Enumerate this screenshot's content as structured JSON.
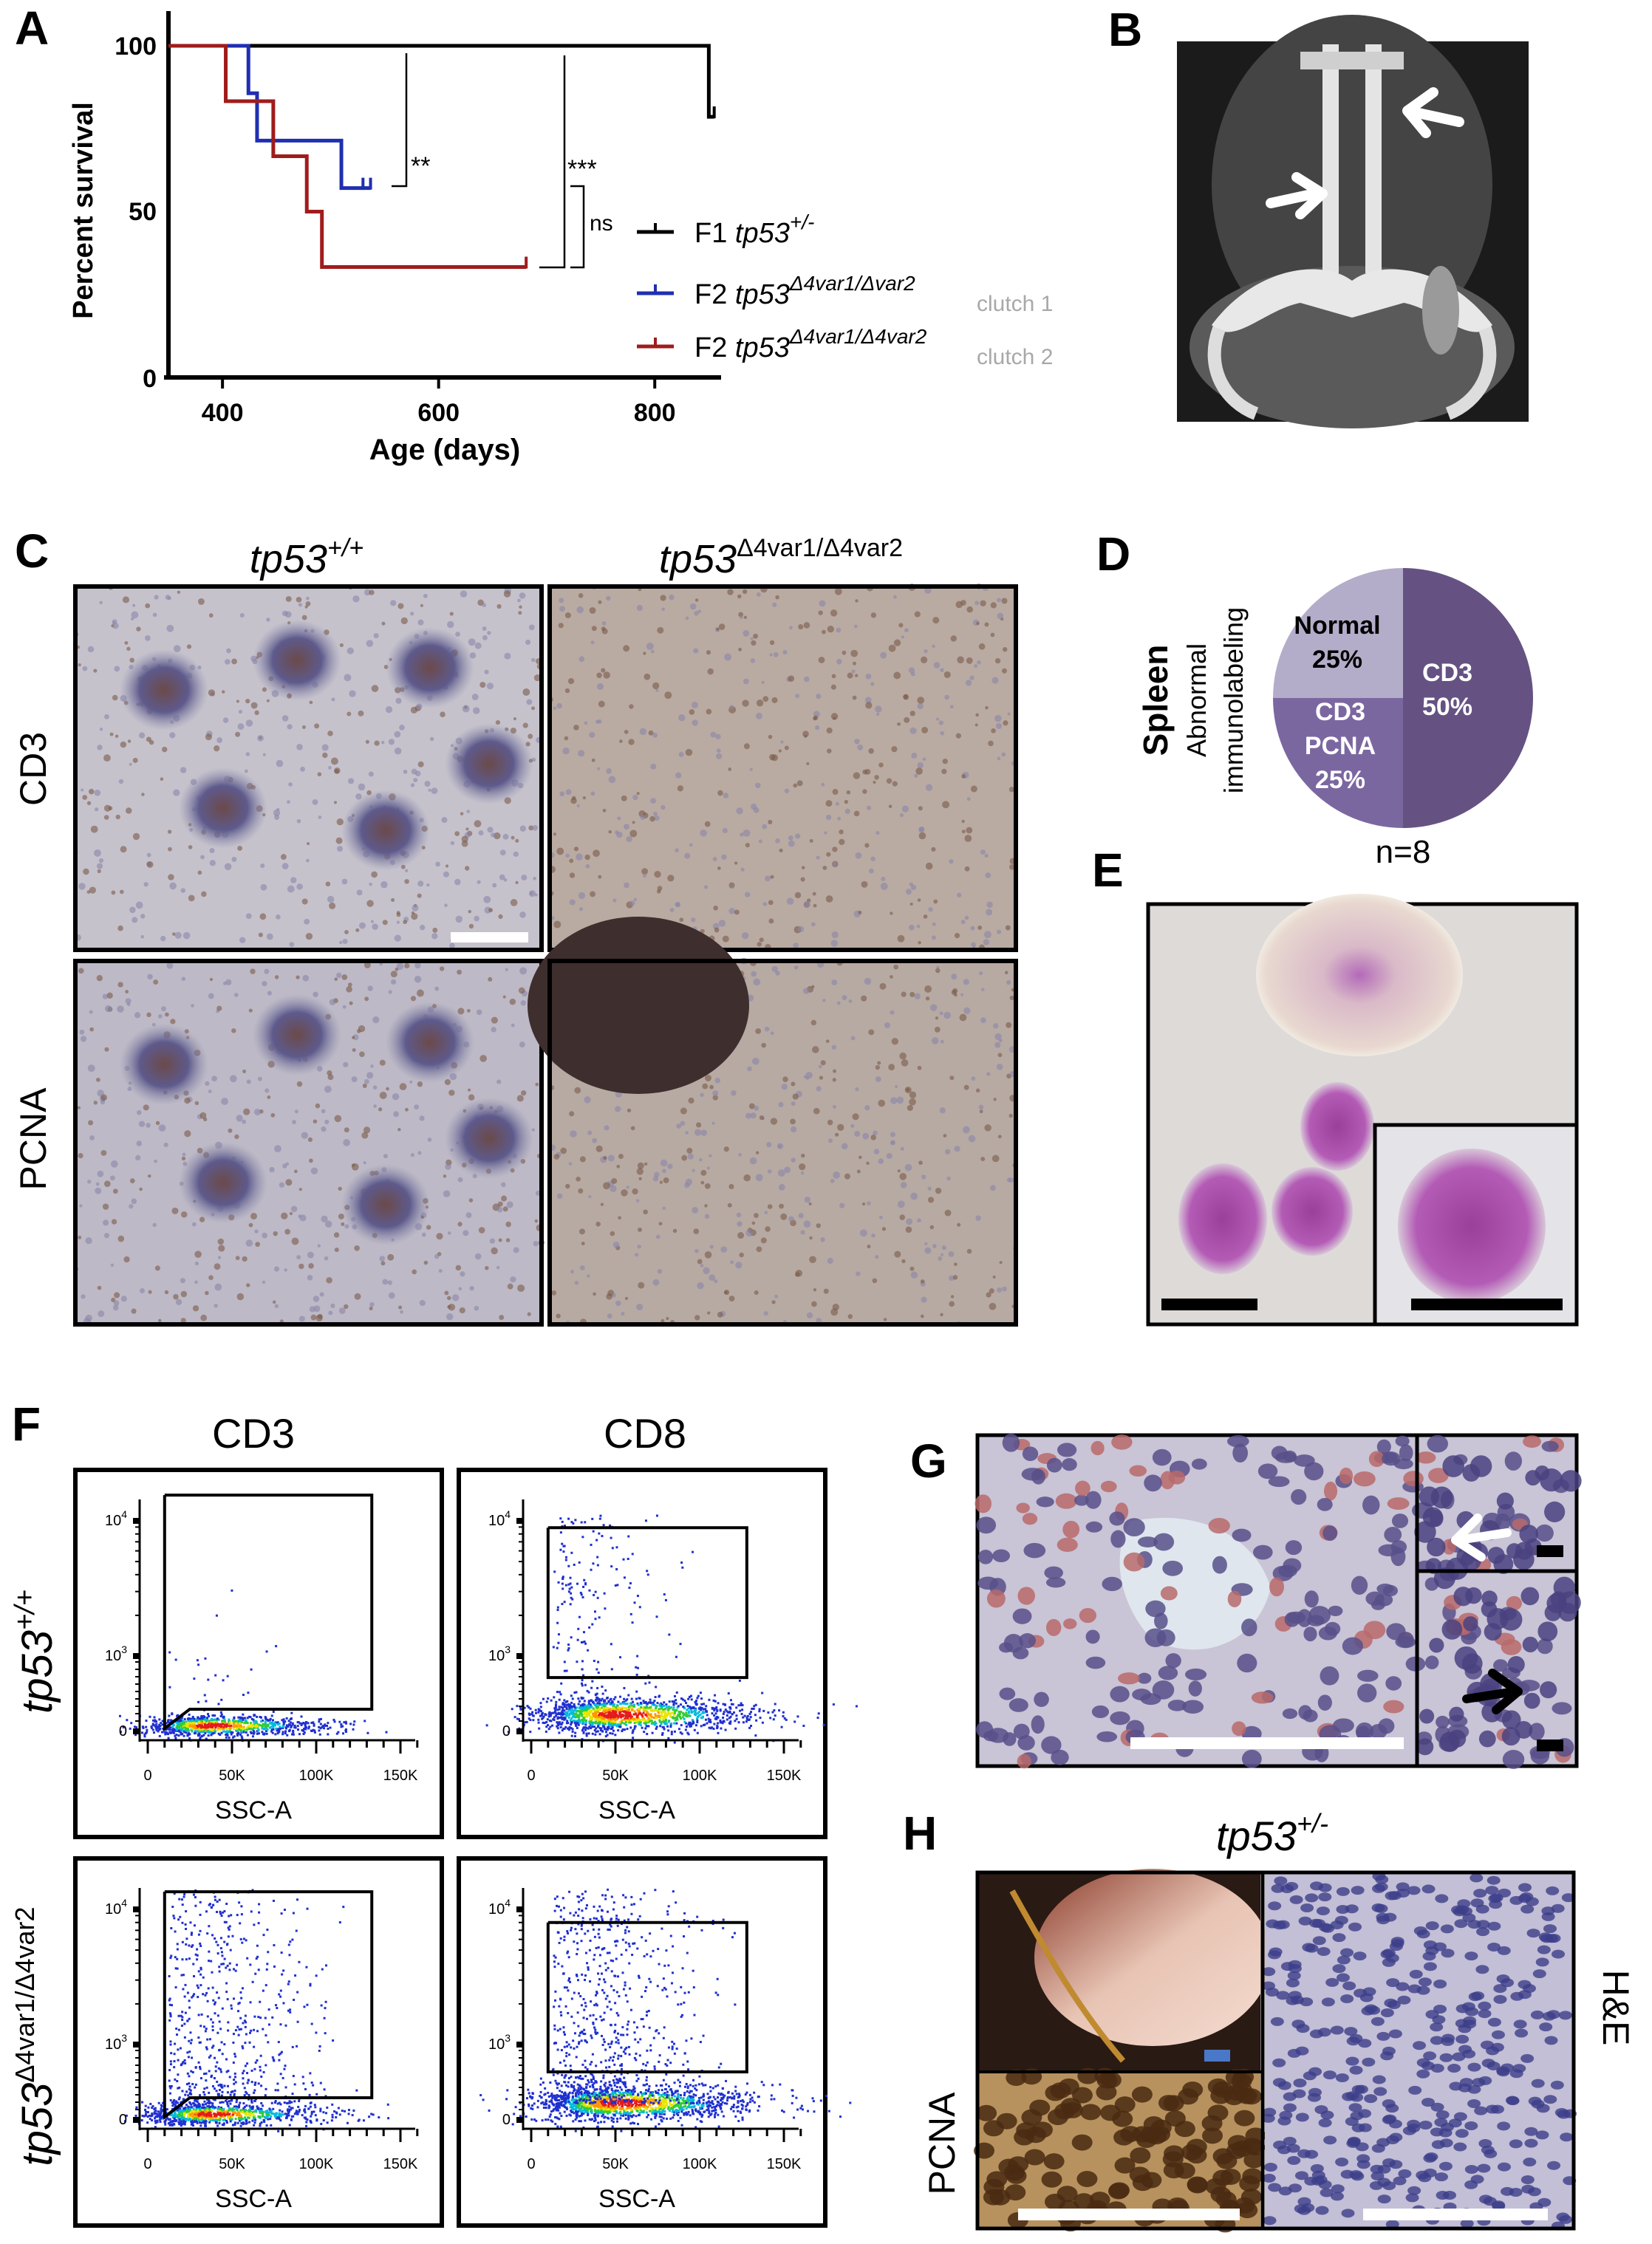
{
  "panels": {
    "A": "A",
    "B": "B",
    "C": "C",
    "D": "D",
    "E": "E",
    "F": "F",
    "G": "G",
    "H": "H"
  },
  "chart_data": [
    {
      "type": "line",
      "subtype": "kaplan-meier",
      "xlabel": "Age (days)",
      "ylabel": "Percent survival",
      "xlim": [
        350,
        860
      ],
      "ylim": [
        0,
        100
      ],
      "xticks": [
        "400",
        "600",
        "800"
      ],
      "yticks": [
        "0",
        "50",
        "100"
      ],
      "legend_position": "right",
      "series": [
        {
          "name_prefix": "F1",
          "name_gene": "tp53",
          "name_sup": "+/-",
          "name_note": "",
          "color": "#000000",
          "steps": [
            [
              350,
              100
            ],
            [
              850,
              78.6
            ]
          ],
          "end": 855,
          "censored": [
            855
          ]
        },
        {
          "name_prefix": "F2",
          "name_gene": "tp53",
          "name_sup": "Δ4var1/Δvar2",
          "name_note": "clutch 1",
          "color": "#1f2fb0",
          "steps": [
            [
              350,
              100
            ],
            [
              424,
              85.7
            ],
            [
              432,
              71.4
            ],
            [
              510,
              57.1
            ]
          ],
          "end": 537,
          "censored": [
            530,
            537
          ]
        },
        {
          "name_prefix": "F2",
          "name_gene": "tp53",
          "name_sup": "Δ4var1/Δ4var2",
          "name_note": "clutch 2",
          "color": "#a01c1c",
          "steps": [
            [
              350,
              100
            ],
            [
              403,
              83.3
            ],
            [
              447,
              66.7
            ],
            [
              478,
              50
            ],
            [
              492,
              33.3
            ]
          ],
          "end": 681,
          "censored": [
            681
          ]
        }
      ],
      "annotations": [
        {
          "text": "**",
          "compares": "F1 vs clutch 1"
        },
        {
          "text": "***",
          "compares": "F1 vs clutch 2"
        },
        {
          "text": "ns",
          "compares": "clutch 1 vs clutch 2"
        }
      ]
    },
    {
      "type": "pie",
      "title": "Spleen",
      "subtitle_1": "Abnormal",
      "subtitle_2": "immunolabeling",
      "note": "n=8",
      "slices": [
        {
          "label": "CD3",
          "label2": "",
          "pct_label": "50%",
          "value": 50,
          "color": "#655283",
          "text_color": "#ffffff"
        },
        {
          "label": "CD3",
          "label2": "PCNA",
          "pct_label": "25%",
          "value": 25,
          "color": "#7b67a0",
          "text_color": "#ffffff"
        },
        {
          "label": "Normal",
          "label2": "",
          "pct_label": "25%",
          "value": 25,
          "color": "#b4adc9",
          "text_color": "#000000"
        }
      ]
    },
    {
      "type": "scatter",
      "subtype": "flow-cytometry",
      "column_headers": [
        "CD3",
        "CD8"
      ],
      "row_labels": [
        {
          "gene": "tp53",
          "sup": "+/+"
        },
        {
          "gene": "tp53",
          "sup": "Δ4var1/Δ4var2"
        }
      ],
      "xlabel": "SSC-A",
      "xticks": [
        "0",
        "50K",
        "100K",
        "150K"
      ],
      "yticks": [
        {
          "base": "0",
          "exp": ""
        },
        {
          "base": "10",
          "exp": "3"
        },
        {
          "base": "10",
          "exp": "4"
        }
      ],
      "plots": [
        {
          "marker": "CD3",
          "row": 0,
          "gate": {
            "x": [
              10000,
              133000
            ],
            "y": [
              100,
              15500
            ],
            "slanted": true
          }
        },
        {
          "marker": "CD8",
          "row": 0,
          "gate": {
            "x": [
              10000,
              128000
            ],
            "y": [
              420,
              8900
            ],
            "slanted": false
          }
        },
        {
          "marker": "CD3",
          "row": 1,
          "gate": {
            "x": [
              10000,
              133000
            ],
            "y": [
              100,
              13500
            ],
            "slanted": true
          }
        },
        {
          "marker": "CD8",
          "row": 1,
          "gate": {
            "x": [
              10000,
              128000
            ],
            "y": [
              330,
              8000
            ],
            "slanted": false
          }
        }
      ]
    }
  ],
  "panel_c": {
    "col_headers": [
      {
        "gene": "tp53",
        "sup": "+/+"
      },
      {
        "gene": "tp53",
        "sup": "Δ4var1/Δ4var2"
      }
    ],
    "row_labels": [
      "CD3",
      "PCNA"
    ]
  },
  "panel_h": {
    "header_gene": "tp53",
    "header_sup": "+/-",
    "left_label": "PCNA",
    "right_label": "H&E"
  },
  "colors": {
    "scale_bar_white": "#ffffff",
    "scale_bar_black": "#000000",
    "ct_background": "#1a1a1a"
  }
}
